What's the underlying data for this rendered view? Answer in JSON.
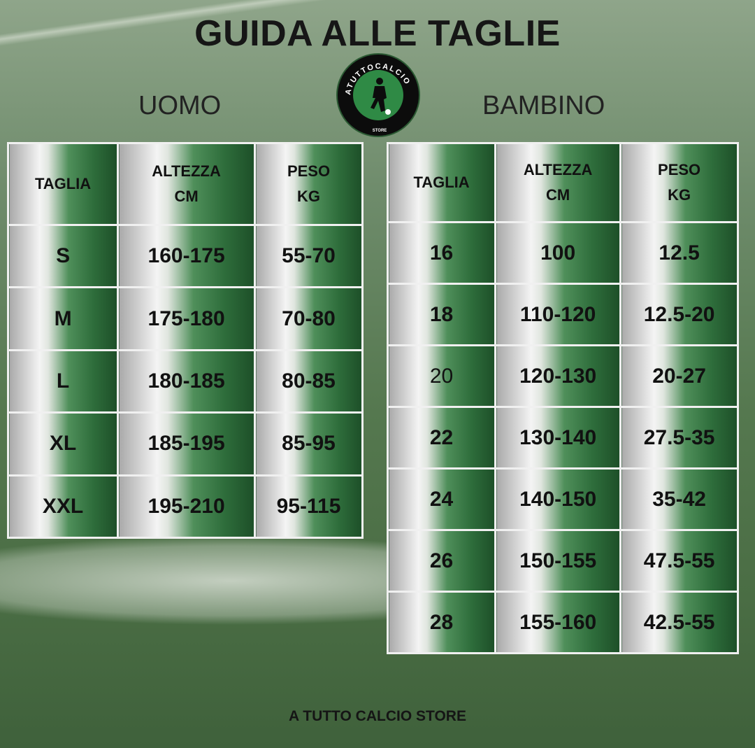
{
  "title": "GUIDA ALLE TAGLIE",
  "logo": {
    "text": "ATUTTOCALCIO",
    "subtext": "STORE"
  },
  "uomo": {
    "label": "UOMO",
    "headers": [
      "TAGLIA",
      "ALTEZZA\nCM",
      "PESO\nKG"
    ],
    "rows": [
      [
        "S",
        "160-175",
        "55-70"
      ],
      [
        "M",
        "175-180",
        "70-80"
      ],
      [
        "L",
        "180-185",
        "80-85"
      ],
      [
        "XL",
        "185-195",
        "85-95"
      ],
      [
        "XXL",
        "195-210",
        "95-115"
      ]
    ]
  },
  "bambino": {
    "label": "BAMBINO",
    "headers": [
      "TAGLIA",
      "ALTEZZA\nCM",
      "PESO\nKG"
    ],
    "rows": [
      [
        "16",
        "100",
        "12.5"
      ],
      [
        "18",
        "110-120",
        "12.5-20"
      ],
      [
        "20",
        "120-130",
        "20-27"
      ],
      [
        "22",
        "130-140",
        "27.5-35"
      ],
      [
        "24",
        "140-150",
        "35-42"
      ],
      [
        "26",
        "150-155",
        "47.5-55"
      ],
      [
        "28",
        "155-160",
        "42.5-55"
      ]
    ]
  },
  "footer": "A TUTTO CALCIO STORE"
}
